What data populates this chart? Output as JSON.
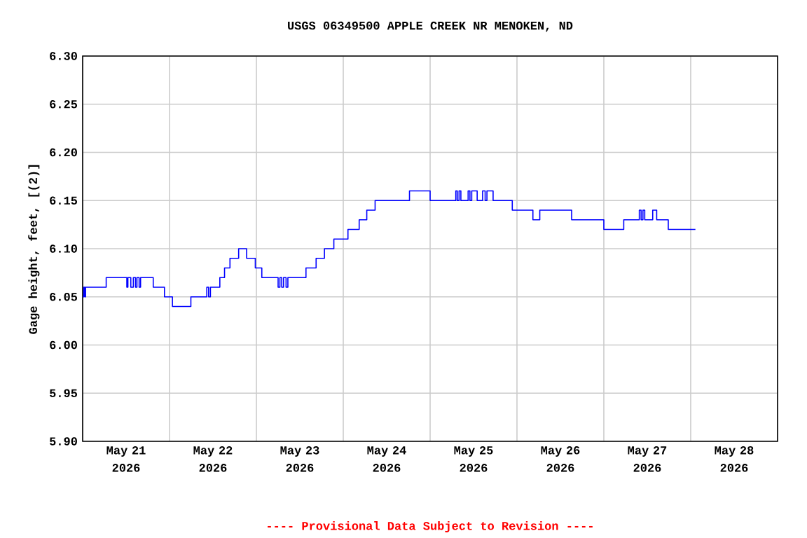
{
  "chart_data": {
    "type": "step",
    "title": "USGS 06349500 APPLE CREEK NR MENOKEN, ND",
    "ylabel": "Gage height, feet, [(2)]",
    "annotations": [
      "---- Provisional Data Subject to Revision ----"
    ],
    "grid": true,
    "xlim": [
      "2026-05-21T00:00",
      "2026-05-29T00:00"
    ],
    "xticks": [
      {
        "value": "2026-05-21T00:00",
        "label": null
      },
      {
        "value": "2026-05-22T00:00",
        "label": null
      },
      {
        "value": "2026-05-23T00:00",
        "label": null
      },
      {
        "value": "2026-05-24T00:00",
        "label": null
      },
      {
        "value": "2026-05-25T00:00",
        "label": null
      },
      {
        "value": "2026-05-26T00:00",
        "label": null
      },
      {
        "value": "2026-05-27T00:00",
        "label": null
      },
      {
        "value": "2026-05-28T00:00",
        "label": null
      },
      {
        "value": "2026-05-29T00:00",
        "label": null
      },
      {
        "value": "2026-05-21T12:00",
        "label": "May 21 2026"
      },
      {
        "value": "2026-05-22T12:00",
        "label": "May 22 2026"
      },
      {
        "value": "2026-05-23T12:00",
        "label": "May 23 2026"
      },
      {
        "value": "2026-05-24T12:00",
        "label": "May 24 2026"
      },
      {
        "value": "2026-05-25T12:00",
        "label": "May 25 2026"
      },
      {
        "value": "2026-05-26T12:00",
        "label": "May 26 2026"
      },
      {
        "value": "2026-05-27T12:00",
        "label": "May 27 2026"
      },
      {
        "value": "2026-05-28T12:00",
        "label": "May 28 2026"
      }
    ],
    "ylim": [
      5.9,
      6.3
    ],
    "yticks": [
      {
        "value": 5.9,
        "label": "5.90"
      },
      {
        "value": 5.95,
        "label": "5.95"
      },
      {
        "value": 6.0,
        "label": "6.00"
      },
      {
        "value": 6.05,
        "label": "6.05"
      },
      {
        "value": 6.1,
        "label": "6.10"
      },
      {
        "value": 6.15,
        "label": "6.15"
      },
      {
        "value": 6.2,
        "label": "6.20"
      },
      {
        "value": 6.25,
        "label": "6.25"
      },
      {
        "value": 6.3,
        "label": "6.30"
      }
    ],
    "x": [
      "2026-05-21T00:00",
      "2026-05-21T00:18",
      "2026-05-21T00:36",
      "2026-05-21T00:48",
      "2026-05-21T06:30",
      "2026-05-21T12:12",
      "2026-05-21T12:30",
      "2026-05-21T13:18",
      "2026-05-21T14:00",
      "2026-05-21T14:36",
      "2026-05-21T15:00",
      "2026-05-21T15:36",
      "2026-05-21T16:00",
      "2026-05-21T19:30",
      "2026-05-21T22:36",
      "2026-05-22T00:48",
      "2026-05-22T05:54",
      "2026-05-22T10:18",
      "2026-05-22T10:48",
      "2026-05-22T11:18",
      "2026-05-22T13:54",
      "2026-05-22T15:12",
      "2026-05-22T16:42",
      "2026-05-22T19:06",
      "2026-05-22T21:18",
      "2026-05-22T23:42",
      "2026-05-23T01:30",
      "2026-05-23T06:00",
      "2026-05-23T06:30",
      "2026-05-23T07:00",
      "2026-05-23T07:30",
      "2026-05-23T08:12",
      "2026-05-23T08:42",
      "2026-05-23T13:42",
      "2026-05-23T16:30",
      "2026-05-23T18:48",
      "2026-05-23T21:24",
      "2026-05-24T01:18",
      "2026-05-24T04:24",
      "2026-05-24T06:30",
      "2026-05-24T08:48",
      "2026-05-24T18:18",
      "2026-05-25T00:00",
      "2026-05-25T07:06",
      "2026-05-25T07:30",
      "2026-05-25T08:00",
      "2026-05-25T08:30",
      "2026-05-25T10:30",
      "2026-05-25T11:00",
      "2026-05-25T11:30",
      "2026-05-25T13:00",
      "2026-05-25T14:30",
      "2026-05-25T15:12",
      "2026-05-25T15:42",
      "2026-05-25T17:24",
      "2026-05-25T22:42",
      "2026-05-26T04:24",
      "2026-05-26T06:18",
      "2026-05-26T15:06",
      "2026-05-27T00:00",
      "2026-05-27T05:30",
      "2026-05-27T09:48",
      "2026-05-27T10:18",
      "2026-05-27T10:48",
      "2026-05-27T11:18",
      "2026-05-27T13:30",
      "2026-05-27T14:36",
      "2026-05-27T17:48",
      "2026-05-28T01:18"
    ],
    "series": [
      {
        "color": "#0000ff",
        "values": [
          6.05,
          6.06,
          6.05,
          6.06,
          6.07,
          6.06,
          6.07,
          6.06,
          6.07,
          6.06,
          6.07,
          6.06,
          6.07,
          6.06,
          6.05,
          6.04,
          6.05,
          6.06,
          6.05,
          6.06,
          6.07,
          6.08,
          6.09,
          6.1,
          6.09,
          6.08,
          6.07,
          6.06,
          6.07,
          6.06,
          6.07,
          6.06,
          6.07,
          6.08,
          6.09,
          6.1,
          6.11,
          6.12,
          6.13,
          6.14,
          6.15,
          6.16,
          6.15,
          6.16,
          6.15,
          6.16,
          6.15,
          6.16,
          6.15,
          6.16,
          6.15,
          6.16,
          6.15,
          6.16,
          6.15,
          6.14,
          6.13,
          6.14,
          6.13,
          6.12,
          6.13,
          6.14,
          6.13,
          6.14,
          6.13,
          6.14,
          6.13,
          6.12,
          6.12
        ]
      }
    ]
  }
}
